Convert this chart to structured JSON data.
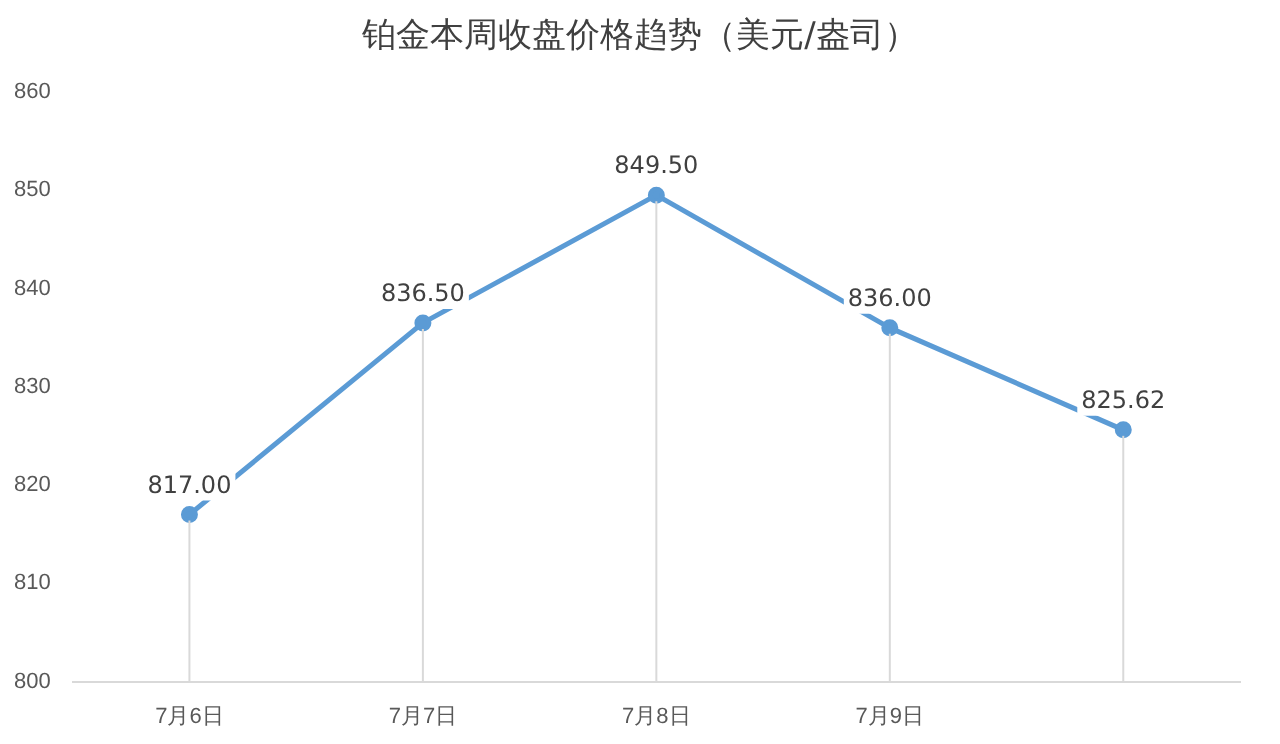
{
  "chart_data": {
    "type": "line",
    "title": "铂金本周收盘价格趋势（美元/盎司）",
    "categories": [
      "7月6日",
      "7月7日",
      "7月8日",
      "7月9日",
      null
    ],
    "series": [
      {
        "color": "#5b9bd5",
        "values": [
          817.0,
          836.5,
          849.5,
          836.0,
          825.62
        ],
        "value_labels": [
          "817.00",
          "836.50",
          "849.50",
          "836.00",
          "825.62"
        ]
      }
    ],
    "ylim": [
      800,
      860
    ],
    "yticks": [
      800,
      810,
      820,
      830,
      840,
      850,
      860
    ],
    "grid": "x",
    "legend": false,
    "marker": "circle",
    "line_style": "solid"
  }
}
